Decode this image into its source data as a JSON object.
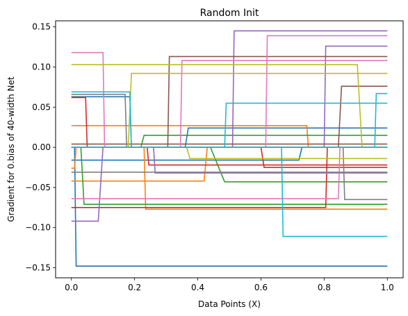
{
  "chart_data": {
    "type": "line",
    "title": "Random Init",
    "xlabel": "Data Points (X)",
    "ylabel": "Gradient for 0.bias of 40-width Net",
    "xlim": [
      -0.05,
      1.05
    ],
    "ylim": [
      -0.1625,
      0.1575
    ],
    "xticks": [
      0.0,
      0.2,
      0.4,
      0.6,
      0.8,
      1.0
    ],
    "xtick_labels": [
      "0.0",
      "0.2",
      "0.4",
      "0.6",
      "0.8",
      "1.0"
    ],
    "yticks": [
      -0.15,
      -0.1,
      -0.05,
      0.0,
      0.05,
      0.1,
      0.15
    ],
    "ytick_labels": [
      "−0.15",
      "−0.10",
      "−0.05",
      "0.00",
      "0.05",
      "0.10",
      "0.15"
    ],
    "grid": false,
    "legend": false,
    "series": [
      {
        "color": "#1f77b4",
        "x": [
          0,
          0.01,
          0.015,
          1
        ],
        "y": [
          0.0,
          0.0,
          -0.148,
          -0.148
        ]
      },
      {
        "color": "#1f77b4",
        "x": [
          0,
          0.185,
          0.19,
          1
        ],
        "y": [
          0.063,
          0.063,
          0.0,
          0.0
        ]
      },
      {
        "color": "#1f77b4",
        "x": [
          0,
          0.72,
          0.73,
          1
        ],
        "y": [
          -0.016,
          -0.016,
          0.0,
          0.0
        ]
      },
      {
        "color": "#1f77b4",
        "x": [
          0,
          0.36,
          0.37,
          1
        ],
        "y": [
          0.0,
          0.0,
          0.024,
          0.024
        ]
      },
      {
        "color": "#ff7f0e",
        "x": [
          0,
          0.745,
          0.75,
          1
        ],
        "y": [
          0.027,
          0.027,
          0.0,
          0.0
        ]
      },
      {
        "color": "#ff7f0e",
        "x": [
          0,
          0.23,
          0.235,
          1
        ],
        "y": [
          0.0,
          0.0,
          -0.077,
          -0.077
        ]
      },
      {
        "color": "#ff7f0e",
        "x": [
          0,
          0.42,
          0.43,
          1
        ],
        "y": [
          -0.042,
          -0.042,
          0.0,
          0.0
        ]
      },
      {
        "color": "#ff7f0e",
        "x": [
          0,
          0.01,
          0.015,
          1
        ],
        "y": [
          -0.026,
          -0.026,
          0.0,
          0.0
        ]
      },
      {
        "color": "#2ca02c",
        "x": [
          0,
          0.03,
          0.04,
          1
        ],
        "y": [
          0.0,
          0.0,
          -0.071,
          -0.071
        ]
      },
      {
        "color": "#2ca02c",
        "x": [
          0,
          0.44,
          0.485,
          1
        ],
        "y": [
          0.0,
          0.0,
          -0.043,
          -0.043
        ]
      },
      {
        "color": "#2ca02c",
        "x": [
          0,
          0.22,
          0.23,
          1
        ],
        "y": [
          0.0,
          0.0,
          0.015,
          0.015
        ]
      },
      {
        "color": "#d62728",
        "x": [
          0,
          0.045,
          0.05,
          1
        ],
        "y": [
          0.062,
          0.062,
          0.0,
          0.0
        ]
      },
      {
        "color": "#d62728",
        "x": [
          0,
          0.805,
          0.81,
          1
        ],
        "y": [
          -0.075,
          -0.075,
          0.0,
          0.0
        ]
      },
      {
        "color": "#d62728",
        "x": [
          0,
          0.24,
          0.245,
          1
        ],
        "y": [
          0.0,
          0.0,
          -0.022,
          -0.022
        ]
      },
      {
        "color": "#d62728",
        "x": [
          0,
          0.6,
          0.61,
          1
        ],
        "y": [
          0.0,
          0.0,
          -0.025,
          -0.025
        ]
      },
      {
        "color": "#9467bd",
        "x": [
          0,
          0.51,
          0.515,
          1
        ],
        "y": [
          0.0,
          0.0,
          0.145,
          0.145
        ]
      },
      {
        "color": "#9467bd",
        "x": [
          0,
          0.085,
          0.1,
          1
        ],
        "y": [
          -0.092,
          -0.092,
          0.0,
          0.0
        ]
      },
      {
        "color": "#9467bd",
        "x": [
          0,
          0.8,
          0.805,
          1
        ],
        "y": [
          0.0,
          0.0,
          0.126,
          0.126
        ]
      },
      {
        "color": "#9467bd",
        "x": [
          0,
          0.26,
          0.265,
          1
        ],
        "y": [
          0.0,
          0.0,
          -0.032,
          -0.032
        ]
      },
      {
        "color": "#8c564b",
        "x": [
          0,
          0.305,
          0.31,
          1
        ],
        "y": [
          0.0,
          0.0,
          0.113,
          0.113
        ]
      },
      {
        "color": "#8c564b",
        "x": [
          0,
          0.845,
          0.855,
          1
        ],
        "y": [
          0.0,
          0.0,
          0.076,
          0.076
        ]
      },
      {
        "color": "#8c564b",
        "x": [
          0,
          1
        ],
        "y": [
          0.004,
          0.004
        ]
      },
      {
        "color": "#e377c2",
        "x": [
          0,
          0.1,
          0.105,
          1
        ],
        "y": [
          0.118,
          0.118,
          0.0,
          0.0
        ]
      },
      {
        "color": "#e377c2",
        "x": [
          0,
          0.615,
          0.62,
          1
        ],
        "y": [
          0.0,
          0.0,
          0.139,
          0.139
        ]
      },
      {
        "color": "#e377c2",
        "x": [
          0,
          0.345,
          0.35,
          1
        ],
        "y": [
          0.0,
          0.0,
          0.108,
          0.108
        ]
      },
      {
        "color": "#e377c2",
        "x": [
          0,
          0.845,
          0.85,
          1
        ],
        "y": [
          -0.064,
          -0.064,
          0.0,
          0.0
        ]
      },
      {
        "color": "#7f7f7f",
        "x": [
          0,
          0.17,
          0.175,
          1
        ],
        "y": [
          0.066,
          0.066,
          0.0,
          0.0
        ]
      },
      {
        "color": "#7f7f7f",
        "x": [
          0,
          0.86,
          0.865,
          1
        ],
        "y": [
          0.0,
          0.0,
          -0.065,
          -0.065
        ]
      },
      {
        "color": "#7f7f7f",
        "x": [
          0,
          1
        ],
        "y": [
          -0.031,
          -0.031
        ]
      },
      {
        "color": "#bcbd22",
        "x": [
          0,
          0.905,
          0.92,
          1
        ],
        "y": [
          0.103,
          0.103,
          0.0,
          0.0
        ]
      },
      {
        "color": "#bcbd22",
        "x": [
          0,
          0.18,
          0.19,
          1
        ],
        "y": [
          0.0,
          0.0,
          0.092,
          0.092
        ]
      },
      {
        "color": "#bcbd22",
        "x": [
          0,
          0.365,
          0.375,
          1
        ],
        "y": [
          0.0,
          0.0,
          -0.014,
          -0.014
        ]
      },
      {
        "color": "#17becf",
        "x": [
          0,
          0.185,
          0.19,
          1
        ],
        "y": [
          0.069,
          0.069,
          0.0,
          0.0
        ]
      },
      {
        "color": "#17becf",
        "x": [
          0,
          0.485,
          0.49,
          1
        ],
        "y": [
          0.0,
          0.0,
          0.055,
          0.055
        ]
      },
      {
        "color": "#17becf",
        "x": [
          0,
          0.665,
          0.67,
          1
        ],
        "y": [
          0.0,
          0.0,
          -0.111,
          -0.111
        ]
      },
      {
        "color": "#17becf",
        "x": [
          0,
          0.96,
          0.965,
          1
        ],
        "y": [
          0.0,
          0.0,
          0.067,
          0.067
        ]
      }
    ]
  }
}
